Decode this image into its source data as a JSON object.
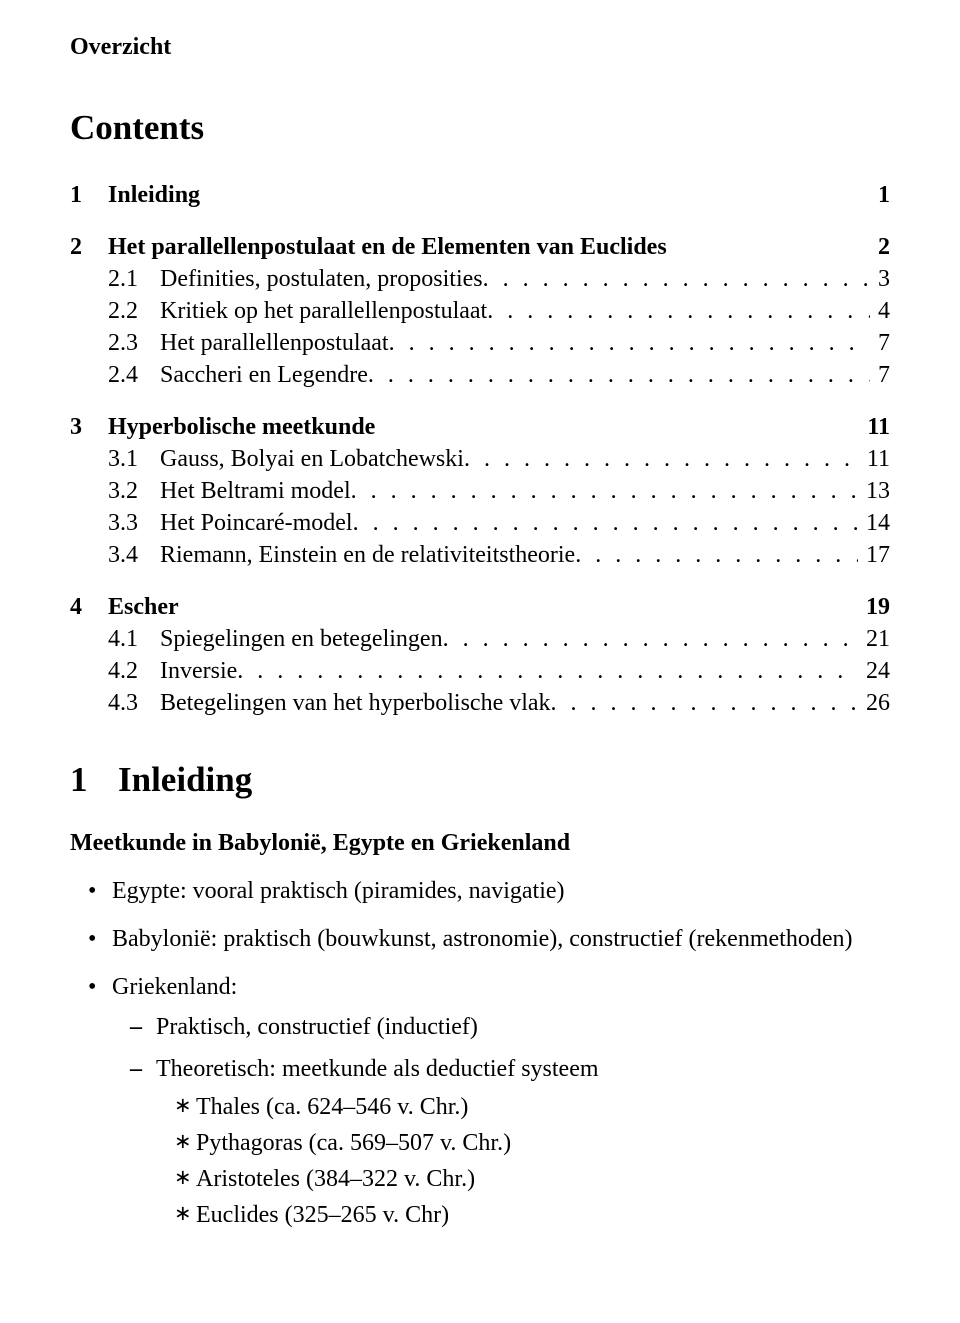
{
  "header": {
    "overzicht": "Overzicht"
  },
  "contents": {
    "title": "Contents",
    "sections": [
      {
        "num": "1",
        "title": "Inleiding",
        "page": "1",
        "subs": []
      },
      {
        "num": "2",
        "title": "Het parallellenpostulaat en de Elementen van Euclides",
        "page": "2",
        "subs": [
          {
            "num": "2.1",
            "title": "Definities, postulaten, proposities",
            "page": "3"
          },
          {
            "num": "2.2",
            "title": "Kritiek op het parallellenpostulaat",
            "page": "4"
          },
          {
            "num": "2.3",
            "title": "Het parallellenpostulaat",
            "page": "7"
          },
          {
            "num": "2.4",
            "title": "Saccheri en Legendre",
            "page": "7"
          }
        ]
      },
      {
        "num": "3",
        "title": "Hyperbolische meetkunde",
        "page": "11",
        "subs": [
          {
            "num": "3.1",
            "title": "Gauss, Bolyai en Lobatchewski",
            "page": "11"
          },
          {
            "num": "3.2",
            "title": "Het Beltrami model",
            "page": "13"
          },
          {
            "num": "3.3",
            "title": "Het Poincaré-model",
            "page": "14"
          },
          {
            "num": "3.4",
            "title": "Riemann, Einstein en de relativiteitstheorie",
            "page": "17"
          }
        ]
      },
      {
        "num": "4",
        "title": "Escher",
        "page": "19",
        "subs": [
          {
            "num": "4.1",
            "title": "Spiegelingen en betegelingen",
            "page": "21"
          },
          {
            "num": "4.2",
            "title": "Inversie",
            "page": "24"
          },
          {
            "num": "4.3",
            "title": "Betegelingen van het hyperbolische vlak",
            "page": "26"
          }
        ]
      }
    ]
  },
  "section1": {
    "num": "1",
    "title": "Inleiding",
    "subhead": "Meetkunde in Babylonië, Egypte en Griekenland",
    "bullets": [
      {
        "text": "Egypte: vooral praktisch (piramides, navigatie)"
      },
      {
        "text": "Babylonië: praktisch (bouwkunst, astronomie), constructief (rekenmethoden)"
      },
      {
        "text": "Griekenland:",
        "dashes": [
          {
            "text": "Praktisch, constructief (inductief)"
          },
          {
            "text": "Theoretisch: meetkunde als deductief systeem",
            "stars": [
              "Thales (ca. 624–546 v. Chr.)",
              "Pythagoras (ca. 569–507 v. Chr.)",
              "Aristoteles (384–322 v. Chr.)",
              "Euclides (325–265 v. Chr)"
            ]
          }
        ]
      }
    ]
  }
}
